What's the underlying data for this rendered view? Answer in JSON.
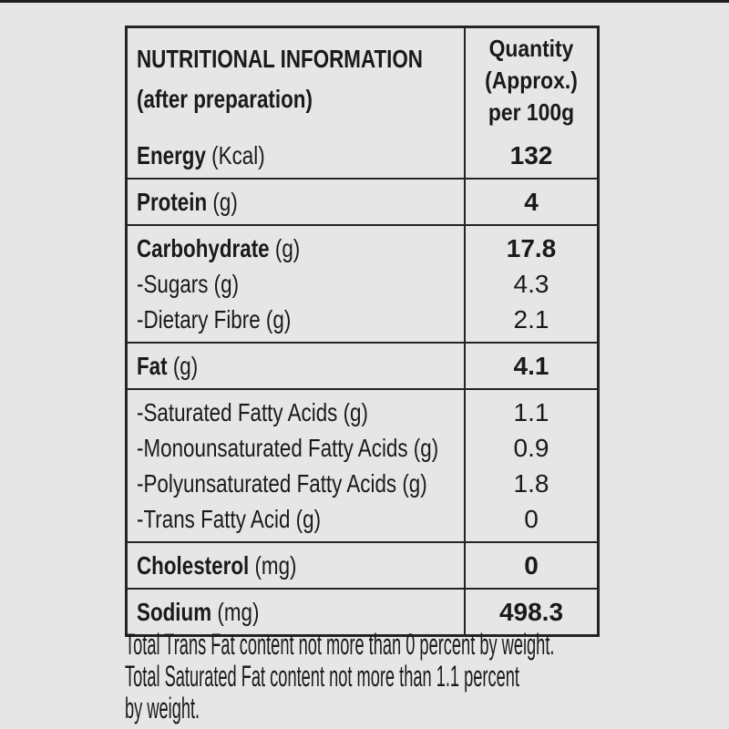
{
  "page": {
    "background_color": "#e6e6e6",
    "top_strip_color": "#1e1e1e",
    "border_color": "#242424",
    "text_color": "#1a1a1a"
  },
  "table": {
    "header": {
      "title_line1": "NUTRITIONAL INFORMATION",
      "title_line2": "(after preparation)",
      "qty_line1": "Quantity",
      "qty_line2": "(Approx.)",
      "qty_line3": "per 100g"
    },
    "groups": [
      {
        "lines": [
          {
            "name": "Energy",
            "unit": "(Kcal)",
            "value": "132",
            "bold": true
          }
        ]
      },
      {
        "lines": [
          {
            "name": "Protein",
            "unit": "(g)",
            "value": "4",
            "bold": true
          }
        ]
      },
      {
        "lines": [
          {
            "name": "Carbohydrate",
            "unit": "(g)",
            "value": "17.8",
            "bold": true
          },
          {
            "name": "-Sugars",
            "unit": "(g)",
            "value": "4.3",
            "bold": false
          },
          {
            "name": "-Dietary Fibre",
            "unit": "(g)",
            "value": "2.1",
            "bold": false
          }
        ]
      },
      {
        "lines": [
          {
            "name": "Fat",
            "unit": "(g)",
            "value": "4.1",
            "bold": true
          }
        ]
      },
      {
        "lines": [
          {
            "name": "-Saturated Fatty Acids",
            "unit": "(g)",
            "value": "1.1",
            "bold": false
          },
          {
            "name": "-Monounsaturated Fatty Acids",
            "unit": "(g)",
            "value": "0.9",
            "bold": false
          },
          {
            "name": "-Polyunsaturated Fatty Acids",
            "unit": "(g)",
            "value": "1.8",
            "bold": false
          },
          {
            "name": "-Trans Fatty Acid",
            "unit": "(g)",
            "value": "0",
            "bold": false
          }
        ]
      },
      {
        "lines": [
          {
            "name": "Cholesterol",
            "unit": "(mg)",
            "value": "0",
            "bold": true
          }
        ]
      },
      {
        "lines": [
          {
            "name": "Sodium",
            "unit": "(mg)",
            "value": "498.3",
            "bold": true
          }
        ]
      }
    ]
  },
  "footnotes": [
    "Total Trans Fat content not more than 0 percent by weight.",
    "Total Saturated Fat content not more than 1.1 percent",
    "by weight."
  ]
}
